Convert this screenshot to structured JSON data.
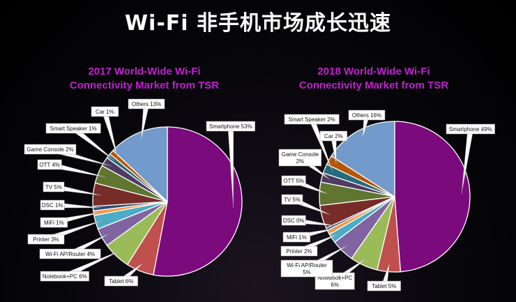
{
  "page": {
    "title": "Wi-Fi 非手机市场成长迅速"
  },
  "chart_data": [
    {
      "type": "pie",
      "title_lines": [
        "2017 World-Wide Wi-Fi",
        "Connectivity Market from TSR"
      ],
      "slices": [
        {
          "label": "Smartphone 53%",
          "value": 53,
          "color": "#7b0a7d"
        },
        {
          "label": "Tablet 6%",
          "value": 6,
          "color": "#c0504d"
        },
        {
          "label": "Notebook+PC 6%",
          "value": 6,
          "color": "#9bbb59"
        },
        {
          "label": "Wi-Fi AP/Router 4%",
          "value": 4,
          "color": "#8064a2"
        },
        {
          "label": "Printer 3%",
          "value": 3,
          "color": "#4bacc6"
        },
        {
          "label": "MiFi 1%",
          "value": 1,
          "color": "#f79646"
        },
        {
          "label": "DSC 1%",
          "value": 1,
          "color": "#2c4d75"
        },
        {
          "label": "TV 5%",
          "value": 5,
          "color": "#772c2a"
        },
        {
          "label": "OTT 4%",
          "value": 4,
          "color": "#5f7530"
        },
        {
          "label": "Game Console 2%",
          "value": 2,
          "color": "#4d3b62"
        },
        {
          "label": "Smart Speaker 1%",
          "value": 1,
          "color": "#276a7c"
        },
        {
          "label": "Car  1%",
          "value": 1,
          "color": "#b65708"
        },
        {
          "label": "Others 13%",
          "value": 13,
          "color": "#729aca"
        }
      ]
    },
    {
      "type": "pie",
      "title_lines": [
        "2018 World-Wide Wi-Fi",
        "Connectivity Market from TSR"
      ],
      "slices": [
        {
          "label": "Smartphone 49%",
          "value": 49,
          "color": "#7b0a7d"
        },
        {
          "label": "Tablet 5%",
          "value": 5,
          "color": "#c0504d"
        },
        {
          "label": "Notebook+PC|6%",
          "value": 6,
          "color": "#9bbb59"
        },
        {
          "label": "Wi-Fi AP/Router|5%",
          "value": 5,
          "color": "#8064a2"
        },
        {
          "label": "Printer 2%",
          "value": 2,
          "color": "#4bacc6"
        },
        {
          "label": "MiFi 1%",
          "value": 1,
          "color": "#f79646"
        },
        {
          "label": "DSC 0%",
          "value": 0.5,
          "color": "#2c4d75"
        },
        {
          "label": "TV 5%",
          "value": 5,
          "color": "#772c2a"
        },
        {
          "label": "OTT 5%",
          "value": 5,
          "color": "#5f7530"
        },
        {
          "label": "Game Console|2%",
          "value": 2,
          "color": "#4d3b62"
        },
        {
          "label": "Smart Speaker 2%",
          "value": 2,
          "color": "#276a7c"
        },
        {
          "label": "Car  2%",
          "value": 2,
          "color": "#b65708"
        },
        {
          "label": "Others 16%",
          "value": 16,
          "color": "#729aca"
        }
      ]
    }
  ]
}
